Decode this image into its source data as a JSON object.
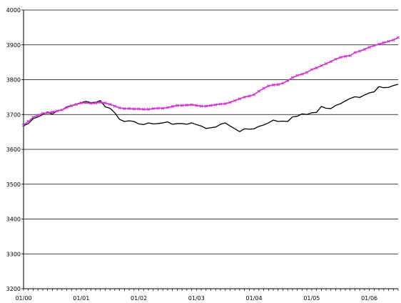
{
  "chart_data": {
    "type": "line",
    "title": "",
    "xlabel": "",
    "ylabel": "",
    "ylim": [
      3200,
      4000
    ],
    "y_ticks": [
      3200,
      3300,
      3400,
      3500,
      3600,
      3700,
      3800,
      3900,
      4000
    ],
    "x_tick_labels": [
      "01/00",
      "01/01",
      "01/02",
      "01/03",
      "01/04",
      "01/05",
      "01/06"
    ],
    "x_range_months": [
      "01/00",
      "07/06"
    ],
    "grid": "horizontal",
    "legend": "none",
    "series": [
      {
        "color": "#000000",
        "marker": "none",
        "values": [
          3668,
          3674,
          3688,
          3693,
          3700,
          3707,
          3701,
          3711,
          3713,
          3722,
          3726,
          3730,
          3734,
          3738,
          3734,
          3735,
          3740,
          3722,
          3718,
          3705,
          3686,
          3680,
          3682,
          3680,
          3673,
          3671,
          3676,
          3673,
          3674,
          3676,
          3679,
          3672,
          3674,
          3674,
          3672,
          3676,
          3671,
          3667,
          3660,
          3662,
          3664,
          3672,
          3676,
          3667,
          3659,
          3651,
          3659,
          3658,
          3659,
          3666,
          3670,
          3676,
          3684,
          3680,
          3681,
          3680,
          3693,
          3695,
          3702,
          3700,
          3705,
          3706,
          3723,
          3718,
          3717,
          3726,
          3731,
          3739,
          3746,
          3751,
          3749,
          3756,
          3762,
          3765,
          3780,
          3777,
          3778,
          3783,
          3787
        ]
      },
      {
        "color": "#cc33cc",
        "marker": "x",
        "values": [
          3670,
          3680,
          3692,
          3698,
          3703,
          3705,
          3707,
          3710,
          3713,
          3720,
          3725,
          3729,
          3733,
          3734,
          3732,
          3733,
          3735,
          3733,
          3729,
          3724,
          3719,
          3717,
          3717,
          3716,
          3716,
          3715,
          3715,
          3717,
          3718,
          3718,
          3720,
          3723,
          3726,
          3726,
          3727,
          3728,
          3726,
          3724,
          3724,
          3726,
          3728,
          3730,
          3731,
          3735,
          3740,
          3745,
          3750,
          3753,
          3757,
          3767,
          3775,
          3782,
          3785,
          3786,
          3790,
          3797,
          3806,
          3812,
          3816,
          3821,
          3829,
          3834,
          3840,
          3846,
          3852,
          3859,
          3864,
          3867,
          3869,
          3878,
          3882,
          3887,
          3893,
          3898,
          3902,
          3906,
          3910,
          3914,
          3921
        ]
      }
    ]
  }
}
